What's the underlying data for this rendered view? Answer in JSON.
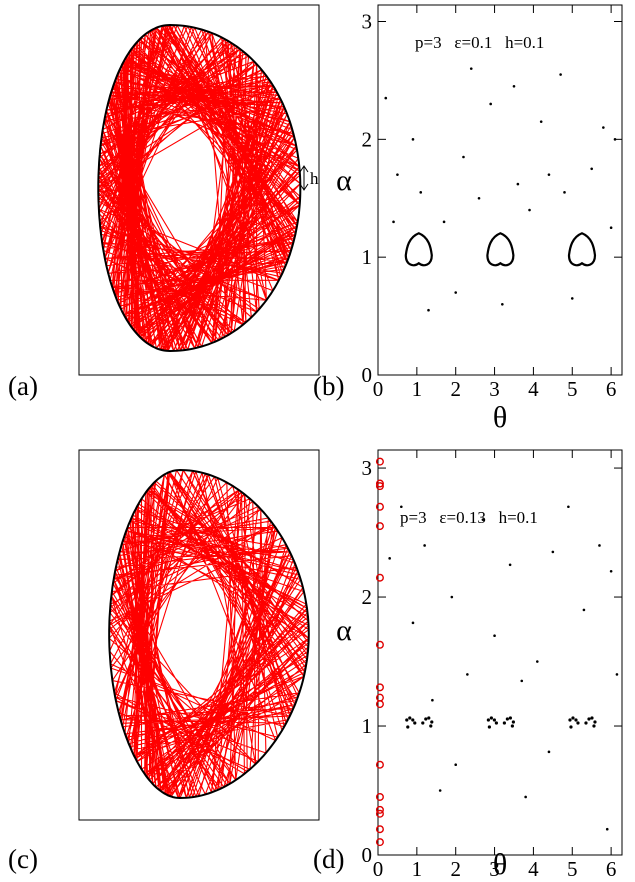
{
  "panels": [
    {
      "id": "a",
      "label": "(a)",
      "kind": "billiard",
      "annotation": "h",
      "bounce_density": 0.9
    },
    {
      "id": "b",
      "label": "(b)",
      "kind": "phase-space",
      "annotation": "p=3   ε=0.1   h=0.1"
    },
    {
      "id": "c",
      "label": "(c)",
      "kind": "billiard",
      "bounce_density": 0.6
    },
    {
      "id": "d",
      "label": "(d)",
      "kind": "phase-space",
      "annotation": "p=3   ε=0.13   h=0.1"
    }
  ],
  "chart_data": [
    {
      "type": "scatter",
      "panel": "b",
      "xlabel": "θ",
      "ylabel": "α",
      "xlim": [
        0,
        6.28
      ],
      "ylim": [
        0,
        3.14
      ],
      "xticks": [
        "0",
        "1",
        "2",
        "3",
        "4",
        "5",
        "6"
      ],
      "yticks": [
        "0",
        "1",
        "2",
        "3"
      ],
      "islands": [
        {
          "center": [
            1.05,
            1.05
          ]
        },
        {
          "center": [
            3.15,
            1.05
          ]
        },
        {
          "center": [
            5.25,
            1.05
          ]
        }
      ],
      "points": [
        [
          0.2,
          2.35
        ],
        [
          0.5,
          1.7
        ],
        [
          0.9,
          2.0
        ],
        [
          1.3,
          0.55
        ],
        [
          1.7,
          1.3
        ],
        [
          2.0,
          0.7
        ],
        [
          2.4,
          2.6
        ],
        [
          2.6,
          1.5
        ],
        [
          2.9,
          2.3
        ],
        [
          3.2,
          0.6
        ],
        [
          3.5,
          2.45
        ],
        [
          3.9,
          1.4
        ],
        [
          4.2,
          2.15
        ],
        [
          4.4,
          1.7
        ],
        [
          4.7,
          2.55
        ],
        [
          5.0,
          0.65
        ],
        [
          5.5,
          1.75
        ],
        [
          5.8,
          2.1
        ],
        [
          6.0,
          1.25
        ],
        [
          6.1,
          2.0
        ],
        [
          1.1,
          1.55
        ],
        [
          3.6,
          1.62
        ],
        [
          4.8,
          1.55
        ],
        [
          0.4,
          1.3
        ],
        [
          2.2,
          1.85
        ]
      ],
      "series": [
        {
          "color": "#000000"
        }
      ]
    },
    {
      "type": "scatter",
      "panel": "d",
      "xlabel": "θ",
      "ylabel": "α",
      "xlim": [
        0,
        6.28
      ],
      "ylim": [
        0,
        3.14
      ],
      "xticks": [
        "0",
        "1",
        "2",
        "3",
        "4",
        "5",
        "6"
      ],
      "yticks": [
        "0",
        "1",
        "2",
        "3"
      ],
      "islands": [
        {
          "center": [
            1.05,
            1.0
          ]
        },
        {
          "center": [
            3.15,
            1.0
          ]
        },
        {
          "center": [
            5.25,
            1.0
          ]
        }
      ],
      "points": [
        [
          0.3,
          2.3
        ],
        [
          0.6,
          2.7
        ],
        [
          0.9,
          1.8
        ],
        [
          1.2,
          2.4
        ],
        [
          1.6,
          0.5
        ],
        [
          1.9,
          2.0
        ],
        [
          2.3,
          1.4
        ],
        [
          2.7,
          2.6
        ],
        [
          3.0,
          1.7
        ],
        [
          3.4,
          2.25
        ],
        [
          3.8,
          0.45
        ],
        [
          4.1,
          1.5
        ],
        [
          4.5,
          2.35
        ],
        [
          4.9,
          2.7
        ],
        [
          5.3,
          1.9
        ],
        [
          5.7,
          2.4
        ],
        [
          6.0,
          2.2
        ],
        [
          6.15,
          1.4
        ],
        [
          2.0,
          0.7
        ],
        [
          4.4,
          0.8
        ],
        [
          5.9,
          0.2
        ],
        [
          1.4,
          1.2
        ],
        [
          3.7,
          1.35
        ]
      ],
      "boundary_points_alpha": [
        3.05,
        2.88,
        2.86,
        2.7,
        2.55,
        2.15,
        1.63,
        1.3,
        1.22,
        1.17,
        0.7,
        0.45,
        0.35,
        0.32,
        0.2,
        0.1
      ],
      "series": [
        {
          "color": "#000000"
        },
        {
          "color": "#e00000"
        }
      ]
    }
  ],
  "colors": {
    "trajectory": "#ff0000",
    "boundary": "#000000",
    "points": "#000000",
    "markers": "#e00000"
  }
}
